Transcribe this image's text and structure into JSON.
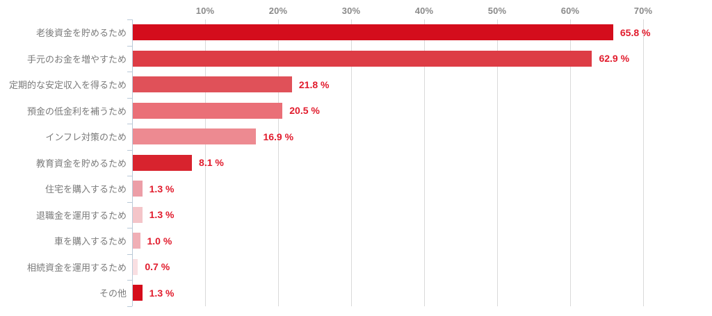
{
  "chart_data": {
    "type": "bar",
    "orientation": "horizontal",
    "title": "",
    "xlabel": "",
    "ylabel": "",
    "categories": [
      "老後資金を貯めるため",
      "手元のお金を増やすため",
      "定期的な安定収入を得るため",
      "預金の低金利を補うため",
      "インフレ対策のため",
      "教育資金を貯めるため",
      "住宅を購入するため",
      "退職金を運用するため",
      "車を購入するため",
      "相続資金を運用するため",
      "その他"
    ],
    "values": [
      65.8,
      62.9,
      21.8,
      20.5,
      16.9,
      8.1,
      1.3,
      1.3,
      1.0,
      0.7,
      1.3
    ],
    "value_labels": [
      "65.8 %",
      "62.9 %",
      "21.8 %",
      "20.5 %",
      "16.9 %",
      "8.1 %",
      "1.3 %",
      "1.3 %",
      "1.0 %",
      "0.7 %",
      "1.3 %"
    ],
    "bar_colors": [
      "#d40d1c",
      "#dd3c45",
      "#e05159",
      "#ea6f77",
      "#ed8a91",
      "#d8232e",
      "#ec9ea7",
      "#f4c5c9",
      "#f0afb6",
      "#f9dfe2",
      "#d50c1b"
    ],
    "x_ticks": [
      {
        "value": 10,
        "label": "10%"
      },
      {
        "value": 20,
        "label": "20%"
      },
      {
        "value": 30,
        "label": "30%"
      },
      {
        "value": 40,
        "label": "40%"
      },
      {
        "value": 50,
        "label": "50%"
      },
      {
        "value": 60,
        "label": "60%"
      },
      {
        "value": 70,
        "label": "70%"
      }
    ],
    "xlim": [
      0,
      79
    ],
    "grid": true,
    "legend": null
  },
  "style": {
    "background": "#ffffff",
    "value_label_color": "#e11b2c",
    "category_label_color": "#7a7a7a",
    "tick_label_color": "#8a8a8a",
    "gridline_color": "#d9d9d9",
    "tick_mark_color": "#a6a6a6",
    "axis_line_color": "#b9c9d8"
  }
}
